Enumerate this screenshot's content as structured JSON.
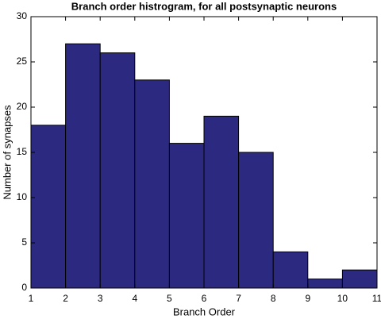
{
  "chart_data": {
    "type": "histogram",
    "title": "Branch order histrogram, for all postsynaptic neurons",
    "xlabel": "Branch Order",
    "ylabel": "Number of synapses",
    "bins": [
      1,
      2,
      3,
      4,
      5,
      6,
      7,
      8,
      9,
      10,
      11
    ],
    "counts": [
      18,
      27,
      26,
      23,
      16,
      19,
      15,
      4,
      1,
      2
    ],
    "color": "#2c2a80",
    "xlim": [
      1,
      11
    ],
    "ylim": [
      0,
      30
    ],
    "xticks": [
      1,
      2,
      3,
      4,
      5,
      6,
      7,
      8,
      9,
      10,
      11
    ],
    "yticks": [
      0,
      5,
      10,
      15,
      20,
      25,
      30
    ]
  }
}
